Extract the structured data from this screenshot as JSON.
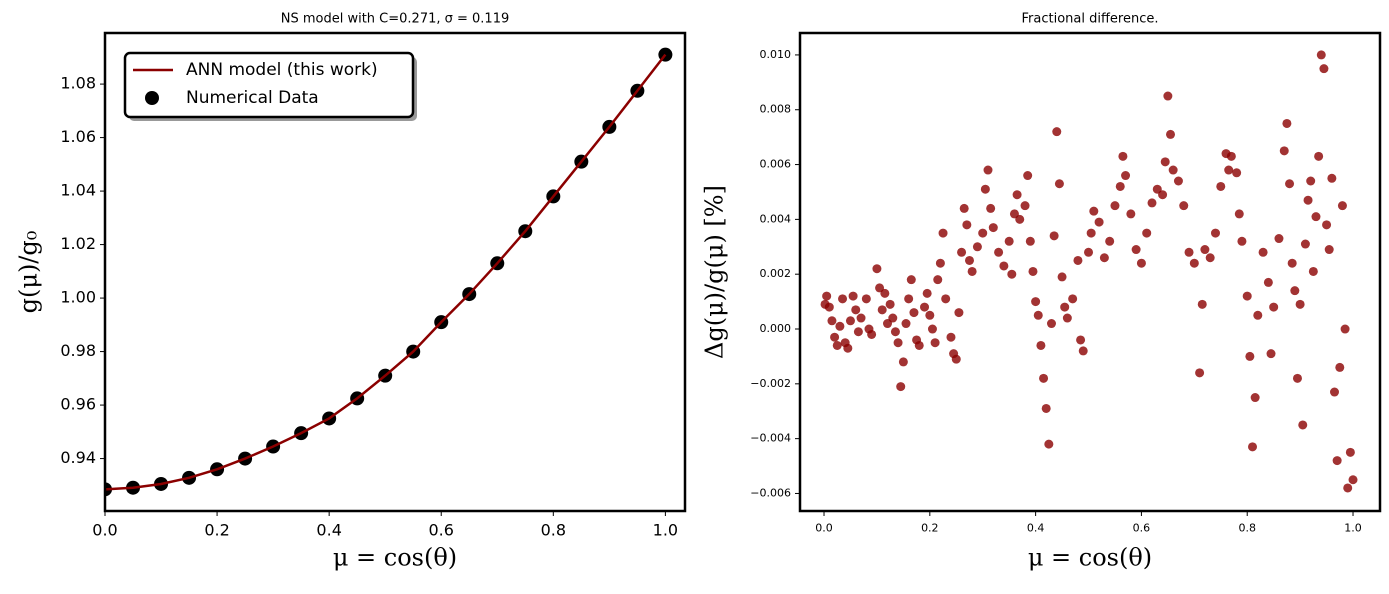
{
  "chart_data": [
    {
      "type": "line",
      "title": "NS model with C=0.271, σ = 0.119",
      "xlabel": "μ = cos(θ)",
      "ylabel": "g(μ)/g₀",
      "x": [
        0,
        0.05,
        0.1,
        0.15,
        0.2,
        0.25,
        0.3,
        0.35,
        0.4,
        0.45,
        0.5,
        0.55,
        0.6,
        0.65,
        0.7,
        0.75,
        0.8,
        0.85,
        0.9,
        0.95,
        1.0
      ],
      "series": [
        {
          "name": "ANN model (this work)",
          "style": "line",
          "color": "#8b0000",
          "values": [
            0.9285,
            0.9291,
            0.9305,
            0.9328,
            0.936,
            0.94,
            0.9445,
            0.9495,
            0.955,
            0.9625,
            0.971,
            0.98,
            0.991,
            1.0015,
            1.013,
            1.025,
            1.038,
            1.051,
            1.064,
            1.0775,
            1.091
          ]
        },
        {
          "name": "Numerical Data",
          "style": "scatter",
          "color": "#000000",
          "values": [
            0.9285,
            0.9291,
            0.9305,
            0.9328,
            0.936,
            0.94,
            0.9445,
            0.9495,
            0.955,
            0.9625,
            0.971,
            0.98,
            0.991,
            1.0015,
            1.013,
            1.025,
            1.038,
            1.051,
            1.064,
            1.0775,
            1.091
          ]
        }
      ],
      "xlim": [
        0,
        1.035
      ],
      "ylim": [
        0.9204,
        1.0991
      ],
      "xticks": [
        {
          "value": 0,
          "label": "0.0"
        },
        0.2,
        0.4,
        0.6,
        0.8,
        {
          "value": 1,
          "label": "1.0"
        }
      ],
      "yticks": [
        0.94,
        0.96,
        0.98,
        {
          "value": 1,
          "label": "1.00"
        },
        1.02,
        1.04,
        1.06,
        1.08
      ],
      "legend": "upper left"
    },
    {
      "type": "scatter",
      "title": "Fractional difference.",
      "xlabel": "μ = cos(θ)",
      "ylabel": "Δg(μ)/g(μ)  [%]",
      "color": "#8b0000",
      "x": [
        0.002,
        0.005,
        0.01,
        0.015,
        0.02,
        0.025,
        0.03,
        0.035,
        0.04,
        0.045,
        0.05,
        0.055,
        0.06,
        0.065,
        0.07,
        0.08,
        0.085,
        0.09,
        0.1,
        0.105,
        0.11,
        0.115,
        0.12,
        0.125,
        0.13,
        0.135,
        0.14,
        0.145,
        0.15,
        0.155,
        0.16,
        0.165,
        0.17,
        0.175,
        0.18,
        0.19,
        0.195,
        0.2,
        0.205,
        0.21,
        0.215,
        0.22,
        0.225,
        0.23,
        0.24,
        0.245,
        0.25,
        0.255,
        0.26,
        0.265,
        0.27,
        0.275,
        0.28,
        0.29,
        0.3,
        0.305,
        0.31,
        0.315,
        0.32,
        0.33,
        0.34,
        0.35,
        0.355,
        0.36,
        0.365,
        0.37,
        0.38,
        0.385,
        0.39,
        0.395,
        0.4,
        0.405,
        0.41,
        0.415,
        0.42,
        0.425,
        0.43,
        0.435,
        0.44,
        0.445,
        0.45,
        0.455,
        0.46,
        0.47,
        0.48,
        0.485,
        0.49,
        0.5,
        0.505,
        0.51,
        0.52,
        0.53,
        0.54,
        0.55,
        0.56,
        0.565,
        0.57,
        0.58,
        0.59,
        0.6,
        0.61,
        0.62,
        0.63,
        0.64,
        0.645,
        0.65,
        0.655,
        0.66,
        0.67,
        0.68,
        0.69,
        0.7,
        0.71,
        0.715,
        0.72,
        0.73,
        0.74,
        0.75,
        0.76,
        0.765,
        0.77,
        0.78,
        0.785,
        0.79,
        0.8,
        0.805,
        0.81,
        0.815,
        0.82,
        0.83,
        0.84,
        0.845,
        0.85,
        0.86,
        0.87,
        0.875,
        0.88,
        0.885,
        0.89,
        0.895,
        0.9,
        0.905,
        0.91,
        0.915,
        0.92,
        0.925,
        0.93,
        0.935,
        0.94,
        0.945,
        0.95,
        0.955,
        0.96,
        0.965,
        0.97,
        0.975,
        0.98,
        0.985,
        0.99,
        0.995,
        1.0
      ],
      "values": [
        0.0009,
        0.0012,
        0.0008,
        0.0003,
        -0.0003,
        -0.0006,
        0.0001,
        0.0011,
        -0.0005,
        -0.0007,
        0.0003,
        0.0012,
        0.0007,
        -0.0001,
        0.0004,
        0.0011,
        0.0,
        -0.0002,
        0.0022,
        0.0015,
        0.0007,
        0.0013,
        0.0002,
        0.0009,
        0.0004,
        -0.0001,
        -0.0005,
        -0.0021,
        -0.0012,
        0.0002,
        0.0011,
        0.0018,
        0.0006,
        -0.0004,
        -0.0006,
        0.0008,
        0.0013,
        0.0005,
        0.0,
        -0.0005,
        0.0018,
        0.0024,
        0.0035,
        0.0011,
        -0.0003,
        -0.0009,
        -0.0011,
        0.0006,
        0.0028,
        0.0044,
        0.0038,
        0.0025,
        0.0021,
        0.003,
        0.0035,
        0.0051,
        0.0058,
        0.0044,
        0.0037,
        0.0028,
        0.0023,
        0.0032,
        0.002,
        0.0042,
        0.0049,
        0.004,
        0.0045,
        0.0056,
        0.0032,
        0.0021,
        0.001,
        0.0005,
        -0.0006,
        -0.0018,
        -0.0029,
        -0.0042,
        0.0002,
        0.0034,
        0.0072,
        0.0053,
        0.0019,
        0.0008,
        0.0004,
        0.0011,
        0.0025,
        -0.0004,
        -0.0008,
        0.0028,
        0.0035,
        0.0043,
        0.0039,
        0.0026,
        0.0032,
        0.0045,
        0.0052,
        0.0063,
        0.0056,
        0.0042,
        0.0029,
        0.0024,
        0.0035,
        0.0046,
        0.0051,
        0.0049,
        0.0061,
        0.0085,
        0.0071,
        0.0058,
        0.0054,
        0.0045,
        0.0028,
        0.0024,
        -0.0016,
        0.0009,
        0.0029,
        0.0026,
        0.0035,
        0.0052,
        0.0064,
        0.0058,
        0.0063,
        0.0057,
        0.0042,
        0.0032,
        0.0012,
        -0.001,
        -0.0043,
        -0.0025,
        0.0005,
        0.0028,
        0.0017,
        -0.0009,
        0.0008,
        0.0033,
        0.0065,
        0.0075,
        0.0053,
        0.0024,
        0.0014,
        -0.0018,
        0.0009,
        -0.0035,
        0.0031,
        0.0047,
        0.0054,
        0.0021,
        0.0041,
        0.0063,
        0.01,
        0.0095,
        0.0038,
        0.0029,
        0.0055,
        -0.0023,
        -0.0048,
        -0.0014,
        0.0045,
        0.0,
        -0.0058,
        -0.0045,
        -0.0055
      ],
      "xlim": [
        -0.0454,
        1.051
      ],
      "ylim": [
        -0.00664,
        0.0108
      ],
      "xticks": [
        {
          "value": 0,
          "label": "0.0"
        },
        0.2,
        0.4,
        0.6,
        0.8,
        {
          "value": 1,
          "label": "1.0"
        }
      ],
      "yticks": [
        {
          "value": -0.006,
          "label": "−0.006"
        },
        {
          "value": -0.004,
          "label": "−0.004"
        },
        {
          "value": -0.002,
          "label": "−0.002"
        },
        {
          "value": 0,
          "label": "0.000"
        },
        {
          "value": 0.002,
          "label": "0.002"
        },
        {
          "value": 0.004,
          "label": "0.004"
        },
        {
          "value": 0.006,
          "label": "0.006"
        },
        {
          "value": 0.008,
          "label": "0.008"
        },
        {
          "value": 0.01,
          "label": "0.010"
        }
      ]
    }
  ]
}
